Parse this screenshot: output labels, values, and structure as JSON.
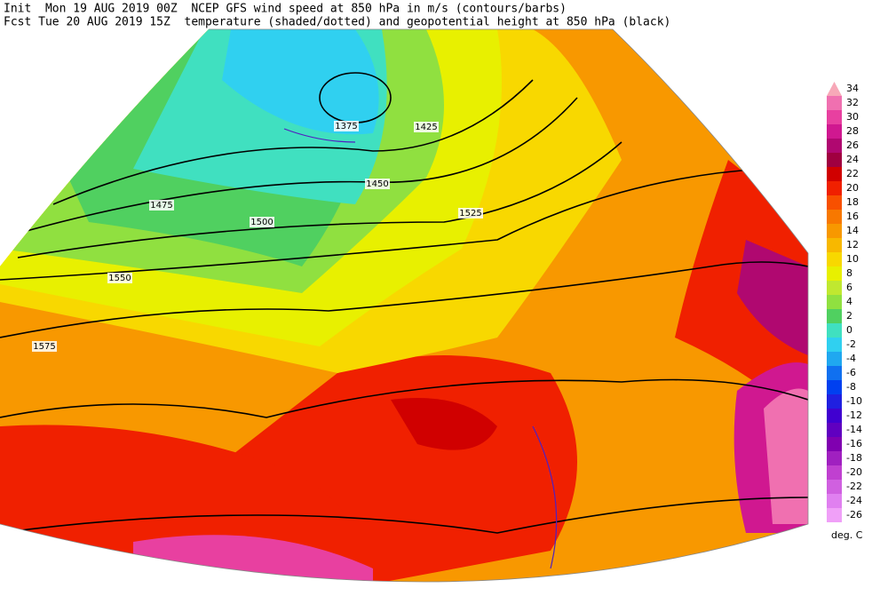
{
  "header": {
    "init": "Init  Mon 19 AUG 2019 00Z  NCEP GFS wind speed at 850 hPa in m/s (contours/barbs)",
    "fcst": "Fcst Tue 20 AUG 2019 15Z  temperature (shaded/dotted) and geopotential height at 850 hPa (black)"
  },
  "scale": {
    "levels": [
      34,
      32,
      30,
      28,
      26,
      24,
      22,
      20,
      18,
      16,
      14,
      12,
      10,
      8,
      6,
      4,
      2,
      0,
      -2,
      -4,
      -6,
      -8,
      -10,
      -12,
      -14,
      -16,
      -18,
      -20,
      -22,
      -24,
      -26
    ],
    "colors": [
      "#f7a8b8",
      "#f070b0",
      "#e840a0",
      "#d01890",
      "#b00870",
      "#a00040",
      "#d00000",
      "#f02000",
      "#f85000",
      "#f87800",
      "#f89800",
      "#f8b800",
      "#f8d800",
      "#e8f000",
      "#c0e830",
      "#90e040",
      "#50d060",
      "#40e0c0",
      "#30d0f0",
      "#20a8f0",
      "#1070f0",
      "#0040f0",
      "#2020e0",
      "#4000d0",
      "#6000c0",
      "#8000b0",
      "#a020c0",
      "#c040d0",
      "#d060e0",
      "#e080f0",
      "#f0a0f8"
    ],
    "unit": "deg. C"
  },
  "height_labels": [
    1375,
    1425,
    1450,
    1475,
    1500,
    1525,
    1550,
    1575
  ]
}
